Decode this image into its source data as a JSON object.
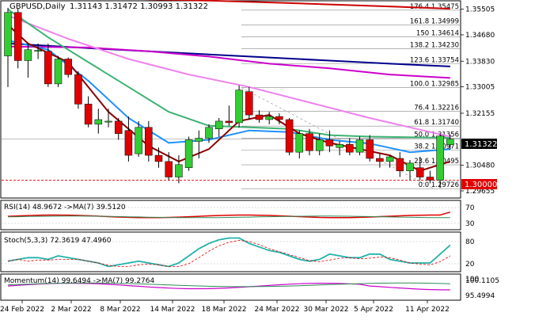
{
  "chart_data": {
    "type": "candlestick",
    "symbol": "GBPUSD,Daily",
    "ohlc_header": "1.31143 1.31472 1.30993 1.31322",
    "last_price": "1.31322",
    "dates": [
      "24 Feb 2022",
      "2 Mar 2022",
      "8 Mar 2022",
      "14 Mar 2022",
      "18 Mar 2022",
      "24 Mar 2022",
      "30 Mar 2022",
      "5 Apr 2022",
      "11 Apr 2022"
    ],
    "price_ticks": [
      "1.35505",
      "1.34680",
      "1.33830",
      "1.33005",
      "1.32155",
      "1.31322",
      "1.30480",
      "1.29655"
    ],
    "ylim": [
      1.2945,
      1.3575
    ],
    "reference_level": "1.30000",
    "fib_levels": [
      {
        "label": "176.4 1.35475",
        "value": 1.35475
      },
      {
        "label": "161.8 1.34999",
        "value": 1.34999
      },
      {
        "label": "150 1.34614",
        "value": 1.34614
      },
      {
        "label": "138.2 1.34230",
        "value": 1.3423
      },
      {
        "label": "123.6 1.33754",
        "value": 1.33754
      },
      {
        "label": "100.0 1.32985",
        "value": 1.32985
      },
      {
        "label": "76.4 1.32216",
        "value": 1.32216
      },
      {
        "label": "61.8 1.31740",
        "value": 1.3174
      },
      {
        "label": "50.0 1.31356",
        "value": 1.31356
      },
      {
        "label": "38.2 1.30971",
        "value": 1.30971
      },
      {
        "label": "23.6 1.30495",
        "value": 1.30495
      },
      {
        "label": "0.0 1.29726",
        "value": 1.29726
      }
    ],
    "candles": [
      [
        1.34,
        1.3555,
        1.33,
        1.354
      ],
      [
        1.354,
        1.3552,
        1.336,
        1.3385
      ],
      [
        1.3385,
        1.344,
        1.333,
        1.342
      ],
      [
        1.3415,
        1.344,
        1.339,
        1.3418
      ],
      [
        1.3415,
        1.344,
        1.33,
        1.331
      ],
      [
        1.331,
        1.34,
        1.33,
        1.339
      ],
      [
        1.339,
        1.3395,
        1.333,
        1.334
      ],
      [
        1.334,
        1.335,
        1.323,
        1.3245
      ],
      [
        1.3245,
        1.327,
        1.317,
        1.318
      ],
      [
        1.318,
        1.323,
        1.315,
        1.3195
      ],
      [
        1.319,
        1.323,
        1.317,
        1.319
      ],
      [
        1.319,
        1.32,
        1.313,
        1.315
      ],
      [
        1.316,
        1.3205,
        1.306,
        1.308
      ],
      [
        1.3085,
        1.319,
        1.3075,
        1.317
      ],
      [
        1.317,
        1.319,
        1.306,
        1.308
      ],
      [
        1.308,
        1.3105,
        1.304,
        1.306
      ],
      [
        1.306,
        1.309,
        1.3,
        1.301
      ],
      [
        1.301,
        1.308,
        1.299,
        1.305
      ],
      [
        1.304,
        1.314,
        1.303,
        1.313
      ],
      [
        1.3125,
        1.316,
        1.307,
        1.3135
      ],
      [
        1.3135,
        1.318,
        1.312,
        1.317
      ],
      [
        1.3165,
        1.32,
        1.314,
        1.319
      ],
      [
        1.319,
        1.324,
        1.3175,
        1.3185
      ],
      [
        1.3185,
        1.3305,
        1.317,
        1.329
      ],
      [
        1.3285,
        1.33,
        1.3195,
        1.321
      ],
      [
        1.321,
        1.3225,
        1.3185,
        1.3195
      ],
      [
        1.3195,
        1.322,
        1.318,
        1.3205
      ],
      [
        1.3205,
        1.3215,
        1.318,
        1.3195
      ],
      [
        1.3195,
        1.32,
        1.308,
        1.309
      ],
      [
        1.309,
        1.316,
        1.307,
        1.315
      ],
      [
        1.315,
        1.3165,
        1.308,
        1.3095
      ],
      [
        1.3095,
        1.315,
        1.308,
        1.313
      ],
      [
        1.313,
        1.316,
        1.309,
        1.311
      ],
      [
        1.3105,
        1.3125,
        1.308,
        1.3115
      ],
      [
        1.3115,
        1.3135,
        1.308,
        1.309
      ],
      [
        1.309,
        1.314,
        1.308,
        1.313
      ],
      [
        1.313,
        1.3145,
        1.306,
        1.307
      ],
      [
        1.307,
        1.3085,
        1.304,
        1.306
      ],
      [
        1.306,
        1.308,
        1.304,
        1.3075
      ],
      [
        1.307,
        1.309,
        1.301,
        1.303
      ],
      [
        1.303,
        1.3065,
        1.3,
        1.3055
      ],
      [
        1.304,
        1.3075,
        1.3,
        1.301
      ],
      [
        1.301,
        1.303,
        1.299,
        1.3
      ],
      [
        1.3,
        1.315,
        1.2975,
        1.3142
      ],
      [
        1.3114,
        1.3147,
        1.3099,
        1.3132
      ]
    ],
    "ma_lines": [
      {
        "color": "#cc0000",
        "points": [
          [
            0,
            1.359
          ],
          [
            10,
            1.3585
          ],
          [
            20,
            1.3578
          ],
          [
            30,
            1.3568
          ],
          [
            40,
            1.3557
          ],
          [
            44,
            1.3552
          ]
        ]
      },
      {
        "color": "#00008b",
        "points": [
          [
            0,
            1.344
          ],
          [
            8,
            1.3425
          ],
          [
            14,
            1.3415
          ],
          [
            20,
            1.3405
          ],
          [
            26,
            1.3395
          ],
          [
            32,
            1.3385
          ],
          [
            38,
            1.3375
          ],
          [
            44,
            1.3366
          ]
        ]
      },
      {
        "color": "#cc00cc",
        "points": [
          [
            0,
            1.343
          ],
          [
            8,
            1.3427
          ],
          [
            14,
            1.3415
          ],
          [
            20,
            1.3398
          ],
          [
            26,
            1.3375
          ],
          [
            32,
            1.336
          ],
          [
            38,
            1.334
          ],
          [
            44,
            1.3329
          ]
        ]
      },
      {
        "color": "#ee82ee",
        "points": [
          [
            0,
            1.353
          ],
          [
            6,
            1.3455
          ],
          [
            12,
            1.339
          ],
          [
            18,
            1.334
          ],
          [
            24,
            1.33
          ],
          [
            30,
            1.325
          ],
          [
            36,
            1.32
          ],
          [
            40,
            1.317
          ],
          [
            44,
            1.314
          ]
        ]
      },
      {
        "color": "#3cb371",
        "points": [
          [
            0,
            1.355
          ],
          [
            4,
            1.346
          ],
          [
            8,
            1.338
          ],
          [
            12,
            1.33
          ],
          [
            16,
            1.322
          ],
          [
            20,
            1.3175
          ],
          [
            24,
            1.317
          ],
          [
            28,
            1.3165
          ],
          [
            32,
            1.3145
          ],
          [
            36,
            1.314
          ],
          [
            40,
            1.3138
          ],
          [
            44,
            1.3136
          ]
        ]
      },
      {
        "color": "#1e90ff",
        "points": [
          [
            0,
            1.345
          ],
          [
            4,
            1.342
          ],
          [
            8,
            1.332
          ],
          [
            12,
            1.32
          ],
          [
            16,
            1.312
          ],
          [
            20,
            1.313
          ],
          [
            24,
            1.316
          ],
          [
            28,
            1.3155
          ],
          [
            32,
            1.313
          ],
          [
            36,
            1.3118
          ],
          [
            40,
            1.309
          ],
          [
            44,
            1.31
          ]
        ]
      },
      {
        "color": "#8b0000",
        "points": [
          [
            0,
            1.35
          ],
          [
            2,
            1.344
          ],
          [
            6,
            1.338
          ],
          [
            10,
            1.322
          ],
          [
            14,
            1.311
          ],
          [
            17,
            1.306
          ],
          [
            20,
            1.31
          ],
          [
            23,
            1.319
          ],
          [
            26,
            1.321
          ],
          [
            29,
            1.315
          ],
          [
            32,
            1.312
          ],
          [
            35,
            1.31
          ],
          [
            38,
            1.308
          ],
          [
            41,
            1.303
          ],
          [
            43,
            1.305
          ],
          [
            44,
            1.306
          ]
        ]
      }
    ],
    "rsi": {
      "label": "RSI(14) 48.9672 ->MA(7) 39.5120",
      "ticks": [
        "70",
        "30"
      ]
    },
    "stoch": {
      "label": "Stoch(5,3,3) 72.3619 47.4960",
      "ticks": [
        "80",
        "20"
      ]
    },
    "momentum": {
      "label": "Momentum(14) 99.6494 ->MA(7) 99.2764",
      "ticks": [
        "100.1105",
        "100",
        "95.4994"
      ]
    }
  }
}
